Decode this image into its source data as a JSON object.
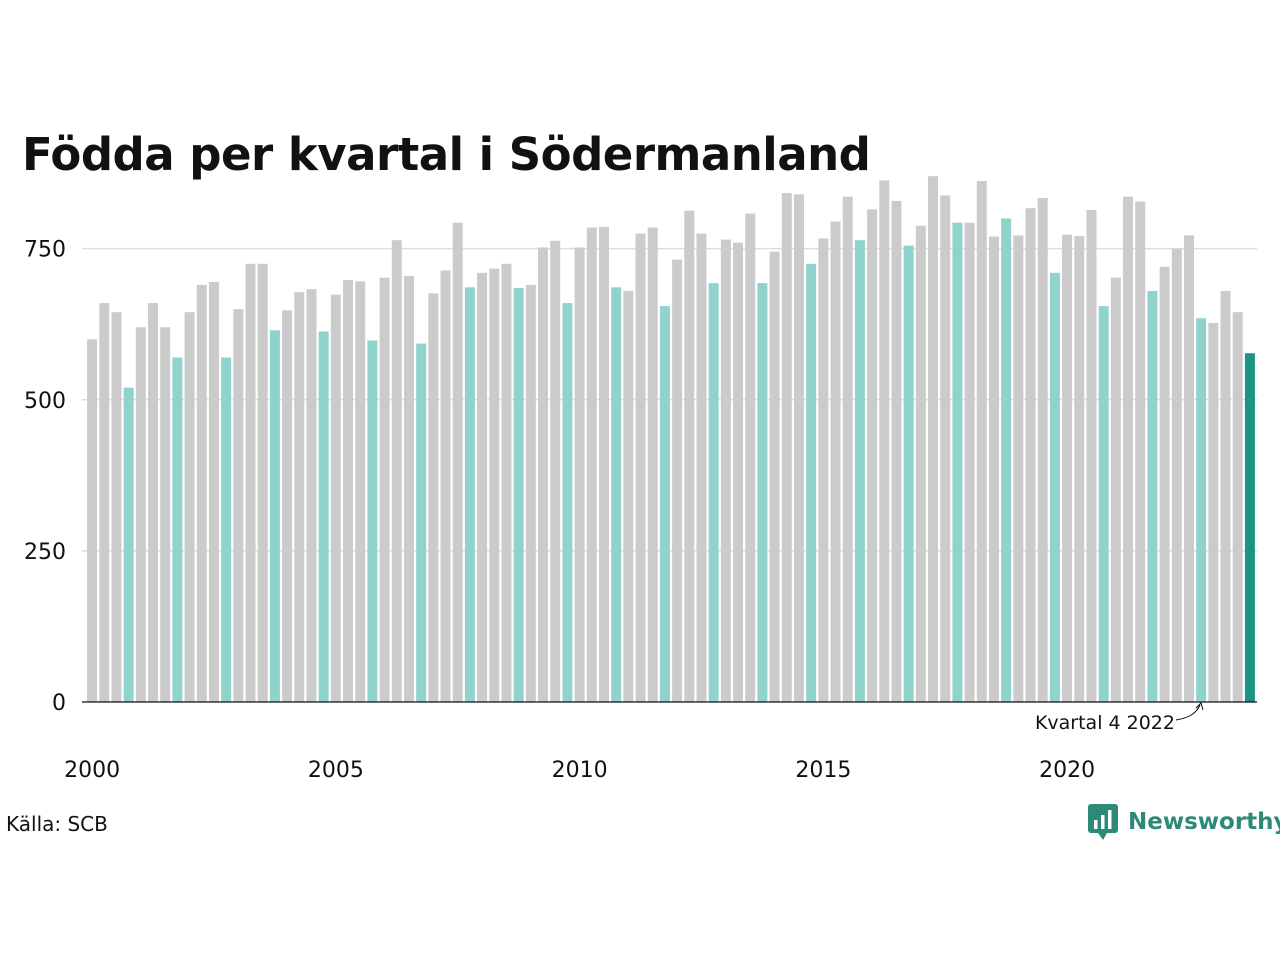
{
  "chart_data": {
    "type": "bar",
    "title": "Födda per kvartal i Södermanland",
    "xlabel": "",
    "ylabel": "",
    "ylim": [
      0,
      900
    ],
    "y_ticks": [
      0,
      250,
      500,
      750
    ],
    "y_tick_labels": [
      "0",
      "250",
      "500",
      "750"
    ],
    "x_tick_labels": [
      "2000",
      "2005",
      "2010",
      "2015",
      "2020"
    ],
    "x_tick_years": [
      2000,
      2005,
      2010,
      2015,
      2020
    ],
    "start_year": 2000,
    "start_quarter": 1,
    "grid": true,
    "highlight_quarter": 4,
    "colors": {
      "bar": "#cbcbcb",
      "highlight": "#8fd3cc",
      "latest": "#1c9484",
      "grid": "#dddddd",
      "axis": "#111111"
    },
    "annotation": "Kvartal 4 2022",
    "values": [
      600,
      660,
      645,
      520,
      620,
      660,
      620,
      570,
      645,
      690,
      695,
      570,
      650,
      725,
      725,
      615,
      648,
      678,
      683,
      613,
      674,
      698,
      696,
      598,
      702,
      764,
      705,
      593,
      676,
      714,
      793,
      686,
      710,
      717,
      725,
      685,
      690,
      752,
      763,
      660,
      752,
      785,
      786,
      686,
      680,
      775,
      785,
      655,
      732,
      813,
      775,
      693,
      765,
      760,
      808,
      693,
      745,
      842,
      840,
      725,
      767,
      795,
      836,
      764,
      815,
      863,
      829,
      755,
      788,
      870,
      838,
      793,
      793,
      862,
      770,
      800,
      772,
      817,
      834,
      710,
      773,
      771,
      814,
      655,
      702,
      836,
      828,
      680,
      720,
      750,
      772,
      635,
      627,
      680,
      645,
      577
    ]
  },
  "source": "Källa: SCB",
  "brand": {
    "name": "Newsworthy",
    "icon": "newsworthy-logo-icon",
    "color": "#2e8a78"
  }
}
